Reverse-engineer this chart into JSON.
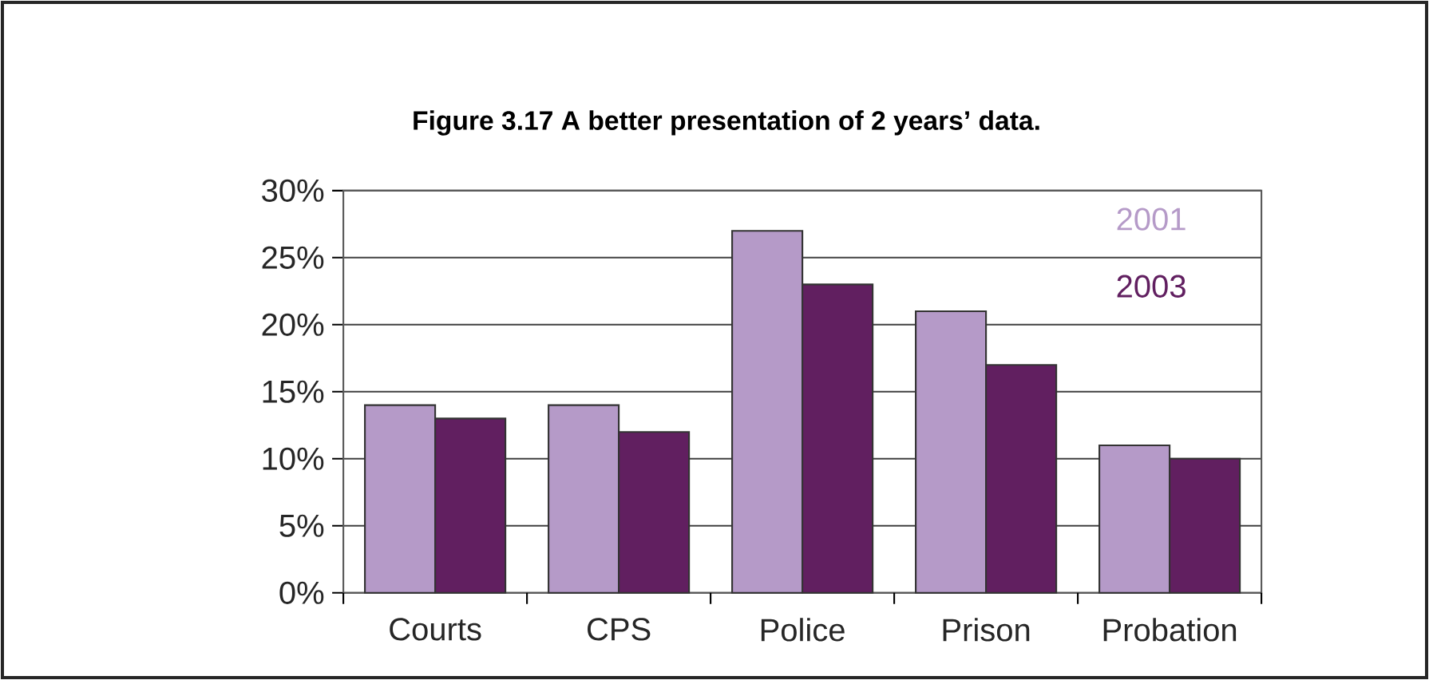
{
  "chart_data": {
    "type": "bar",
    "title": "Figure 3.17 A better presentation of 2 years’ data.",
    "categories": [
      "Courts",
      "CPS",
      "Police",
      "Prison",
      "Probation"
    ],
    "series": [
      {
        "name": "2001",
        "color": "#b59ac8",
        "values": [
          14,
          14,
          27,
          21,
          11
        ]
      },
      {
        "name": "2003",
        "color": "#611f60",
        "values": [
          13,
          12,
          23,
          17,
          10
        ]
      }
    ],
    "ylim": [
      0,
      30
    ],
    "yticks": [
      {
        "value": 0,
        "label": "0%"
      },
      {
        "value": 5,
        "label": "5%"
      },
      {
        "value": 10,
        "label": "10%"
      },
      {
        "value": 15,
        "label": "15%"
      },
      {
        "value": 20,
        "label": "20%"
      },
      {
        "value": 25,
        "label": "25%"
      },
      {
        "value": 30,
        "label": "30%"
      }
    ],
    "grid": "y",
    "legend": "top right"
  }
}
